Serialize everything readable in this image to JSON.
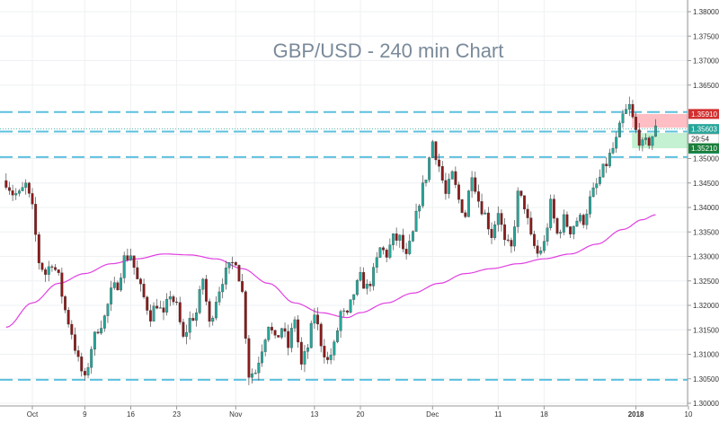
{
  "chart_data": {
    "type": "candlestick",
    "title": "GBP/USD - 240 min Chart",
    "xlabel": "",
    "ylabel": "",
    "ylim": [
      1.3,
      1.385
    ],
    "grid": true,
    "x_ticks": [
      {
        "label": "Oct",
        "day": 0
      },
      {
        "label": "9",
        "day": 8
      },
      {
        "label": "16",
        "day": 15
      },
      {
        "label": "23",
        "day": 22
      },
      {
        "label": "Nov",
        "day": 31
      },
      {
        "label": "13",
        "day": 43
      },
      {
        "label": "20",
        "day": 50
      },
      {
        "label": "Dec",
        "day": 61
      },
      {
        "label": "11",
        "day": 71
      },
      {
        "label": "18",
        "day": 78
      },
      {
        "label": "2018",
        "day": 92,
        "bold": true
      },
      {
        "label": "10",
        "day": 100
      }
    ],
    "y_ticks": [
      "1.38000",
      "1.37500",
      "1.37000",
      "1.36500",
      "1.35500",
      "1.35000",
      "1.34500",
      "1.34000",
      "1.33500",
      "1.33000",
      "1.32500",
      "1.32000",
      "1.31500",
      "1.31000",
      "1.30500",
      "1.30000"
    ],
    "close_path": [
      [
        -4,
        1.3455
      ],
      [
        -3,
        1.343
      ],
      [
        -2,
        1.3425
      ],
      [
        -1,
        1.3445
      ],
      [
        0,
        1.3395
      ],
      [
        1,
        1.329
      ],
      [
        2,
        1.3265
      ],
      [
        3,
        1.329
      ],
      [
        4,
        1.3255
      ],
      [
        5,
        1.319
      ],
      [
        6,
        1.3145
      ],
      [
        7,
        1.3085
      ],
      [
        8,
        1.3045
      ],
      [
        9,
        1.3115
      ],
      [
        10,
        1.3155
      ],
      [
        11,
        1.3175
      ],
      [
        12,
        1.3225
      ],
      [
        13,
        1.3245
      ],
      [
        14,
        1.3295
      ],
      [
        15,
        1.3305
      ],
      [
        16,
        1.325
      ],
      [
        17,
        1.3215
      ],
      [
        18,
        1.318
      ],
      [
        19,
        1.3205
      ],
      [
        20,
        1.3175
      ],
      [
        21,
        1.3225
      ],
      [
        22,
        1.3195
      ],
      [
        23,
        1.313
      ],
      [
        24,
        1.317
      ],
      [
        25,
        1.3185
      ],
      [
        26,
        1.3255
      ],
      [
        27,
        1.316
      ],
      [
        28,
        1.3215
      ],
      [
        29,
        1.3255
      ],
      [
        30,
        1.3275
      ],
      [
        31,
        1.3295
      ],
      [
        32,
        1.3225
      ],
      [
        33,
        1.306
      ],
      [
        34,
        1.3065
      ],
      [
        35,
        1.3115
      ],
      [
        36,
        1.3165
      ],
      [
        37,
        1.3125
      ],
      [
        38,
        1.3155
      ],
      [
        39,
        1.3115
      ],
      [
        40,
        1.3175
      ],
      [
        41,
        1.3075
      ],
      [
        42,
        1.3115
      ],
      [
        43,
        1.3185
      ],
      [
        44,
        1.3125
      ],
      [
        45,
        1.3085
      ],
      [
        46,
        1.3115
      ],
      [
        47,
        1.3185
      ],
      [
        48,
        1.3175
      ],
      [
        49,
        1.3225
      ],
      [
        50,
        1.3255
      ],
      [
        51,
        1.3235
      ],
      [
        52,
        1.3265
      ],
      [
        53,
        1.3315
      ],
      [
        54,
        1.3305
      ],
      [
        55,
        1.3335
      ],
      [
        56,
        1.3335
      ],
      [
        57,
        1.3295
      ],
      [
        58,
        1.3345
      ],
      [
        59,
        1.3415
      ],
      [
        60,
        1.3465
      ],
      [
        61,
        1.3535
      ],
      [
        62,
        1.3485
      ],
      [
        63,
        1.3425
      ],
      [
        64,
        1.3465
      ],
      [
        65,
        1.3415
      ],
      [
        66,
        1.3385
      ],
      [
        67,
        1.3475
      ],
      [
        68,
        1.3415
      ],
      [
        69,
        1.3385
      ],
      [
        70,
        1.3345
      ],
      [
        71,
        1.3395
      ],
      [
        72,
        1.3325
      ],
      [
        73,
        1.3315
      ],
      [
        74,
        1.3425
      ],
      [
        75,
        1.3405
      ],
      [
        76,
        1.3335
      ],
      [
        77,
        1.3305
      ],
      [
        78,
        1.3325
      ],
      [
        79,
        1.3405
      ],
      [
        80,
        1.3345
      ],
      [
        81,
        1.3375
      ],
      [
        82,
        1.3355
      ],
      [
        83,
        1.3375
      ],
      [
        84,
        1.3375
      ],
      [
        85,
        1.3415
      ],
      [
        86,
        1.3445
      ],
      [
        87,
        1.3475
      ],
      [
        88,
        1.3505
      ],
      [
        89,
        1.3535
      ],
      [
        90,
        1.3585
      ],
      [
        91,
        1.3605
      ],
      [
        92,
        1.3555
      ],
      [
        93,
        1.3525
      ],
      [
        94,
        1.3535
      ],
      [
        95,
        1.3559
      ]
    ],
    "moving_average": [
      [
        -4,
        1.3155
      ],
      [
        0,
        1.3205
      ],
      [
        4,
        1.3245
      ],
      [
        8,
        1.3265
      ],
      [
        12,
        1.3285
      ],
      [
        16,
        1.3295
      ],
      [
        20,
        1.3305
      ],
      [
        24,
        1.3303
      ],
      [
        28,
        1.3295
      ],
      [
        32,
        1.3275
      ],
      [
        36,
        1.3245
      ],
      [
        40,
        1.3205
      ],
      [
        44,
        1.3185
      ],
      [
        48,
        1.3175
      ],
      [
        50,
        1.3185
      ],
      [
        54,
        1.3205
      ],
      [
        58,
        1.3225
      ],
      [
        62,
        1.3245
      ],
      [
        66,
        1.3265
      ],
      [
        70,
        1.3275
      ],
      [
        74,
        1.3285
      ],
      [
        78,
        1.3295
      ],
      [
        82,
        1.3305
      ],
      [
        86,
        1.3325
      ],
      [
        90,
        1.3355
      ],
      [
        93,
        1.3375
      ],
      [
        95,
        1.3385
      ]
    ],
    "horizontal_levels": [
      1.3595,
      1.3555,
      1.3503,
      1.3048
    ],
    "resistance_zone": [
      1.3563,
      1.3591
    ],
    "support_zone": [
      1.3521,
      1.3552
    ],
    "price_tags": [
      {
        "label": "1.35910",
        "value": 1.3591,
        "color": "#d32f2f"
      },
      {
        "label": "1.35603",
        "value": 1.35603,
        "color": "#26a69a"
      },
      {
        "label": "29:54",
        "value": 1.3557,
        "color": "#ffffff"
      },
      {
        "label": "1.35522",
        "value": 1.35522,
        "color": "#26a69a"
      },
      {
        "label": "1.35210",
        "value": 1.3521,
        "color": "#1b7e3b"
      }
    ],
    "colors": {
      "up": "#26a69a",
      "down": "#8b1a1a",
      "moving_average": "#e040e0",
      "level_line": "#5bc0de",
      "resistance_zone": "#ffb3b8",
      "support_zone": "#b9efc9"
    }
  }
}
